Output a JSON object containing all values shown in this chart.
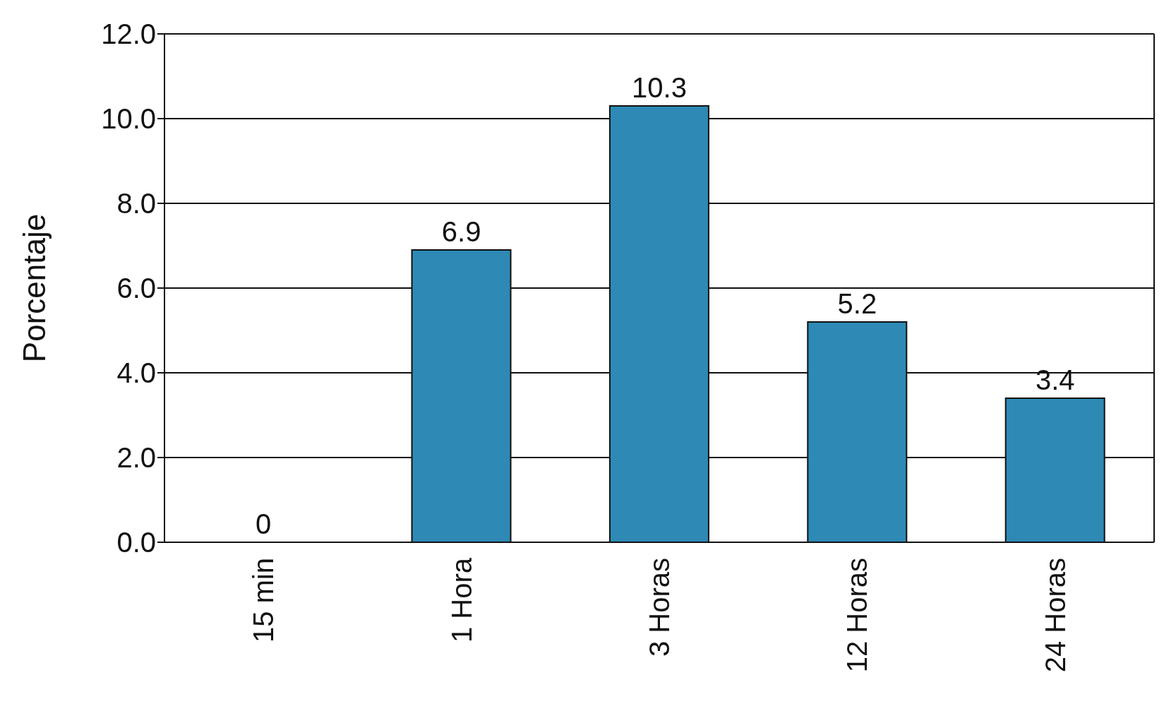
{
  "chart_data": {
    "type": "bar",
    "ylabel": "Porcentaje",
    "categories": [
      "15 min",
      "1 Hora",
      "3 Horas",
      "12 Horas",
      "24 Horas"
    ],
    "values": [
      0,
      6.9,
      10.3,
      5.2,
      3.4
    ],
    "color": "#2e89b5",
    "ylim": [
      0,
      12
    ],
    "yticks": [
      {
        "value": 0,
        "label": "0.0"
      },
      {
        "value": 2,
        "label": "2.0"
      },
      {
        "value": 4,
        "label": "4.0"
      },
      {
        "value": 6,
        "label": "6.0"
      },
      {
        "value": 8,
        "label": "8.0"
      },
      {
        "value": 10,
        "label": "10.0"
      },
      {
        "value": 12,
        "label": "12.0"
      }
    ],
    "grid": "y",
    "data_labels": true
  }
}
